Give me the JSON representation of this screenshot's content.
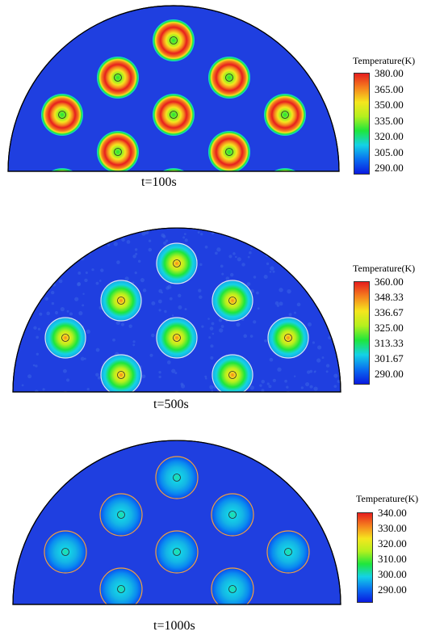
{
  "panels": [
    {
      "time_label": "t=100s",
      "legend_title": "Temperature(K)",
      "legend_ticks": [
        "380.00",
        "365.00",
        "350.00",
        "335.00",
        "320.00",
        "305.00",
        "290.00"
      ]
    },
    {
      "time_label": "t=500s",
      "legend_title": "Temperature(K)",
      "legend_ticks": [
        "360.00",
        "348.33",
        "336.67",
        "325.00",
        "313.33",
        "301.67",
        "290.00"
      ]
    },
    {
      "time_label": "t=1000s",
      "legend_title": "Temperature(K)",
      "legend_ticks": [
        "340.00",
        "330.00",
        "320.00",
        "310.00",
        "300.00",
        "290.00"
      ]
    }
  ],
  "colors": {
    "background_field": "#1f3fe0",
    "colormap": [
      "#0a1ae0",
      "#0a6ff0",
      "#14d2e6",
      "#1ee63c",
      "#b4f01e",
      "#f5e61e",
      "#f5821e",
      "#e61e1e"
    ],
    "ring_outline": "#f0a040"
  }
}
